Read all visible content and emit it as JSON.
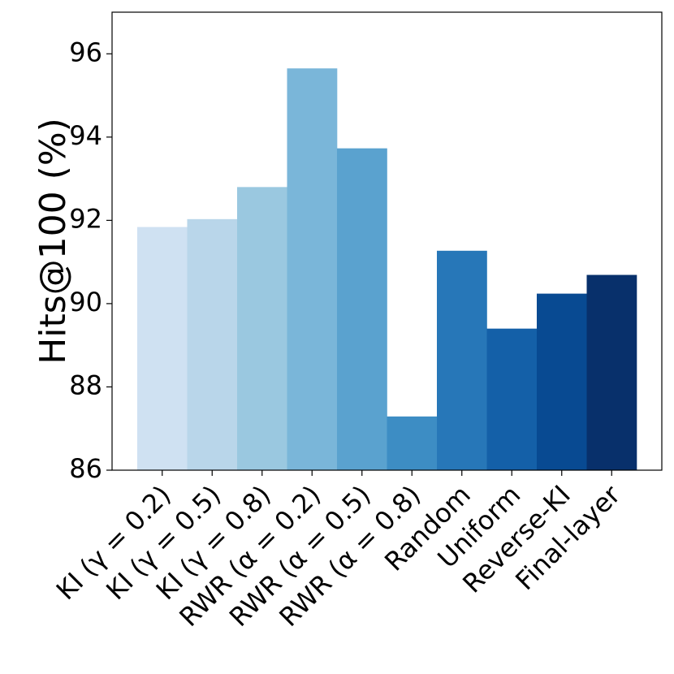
{
  "chart_data": {
    "type": "bar",
    "ylabel": "Hits@100 (%)",
    "categories": [
      "KI (γ = 0.2)",
      "KI (γ = 0.5)",
      "KI (γ = 0.8)",
      "RWR (α = 0.2)",
      "RWR (α = 0.5)",
      "RWR (α = 0.8)",
      "Random",
      "Uniform",
      "Reverse-KI",
      "Final-layer"
    ],
    "values": [
      91.84,
      92.03,
      92.8,
      95.65,
      93.73,
      87.29,
      91.27,
      89.4,
      90.24,
      90.69
    ],
    "colors": [
      "#cfe1f2",
      "#b9d6ea",
      "#9ac8e0",
      "#7ab6d9",
      "#5aa2cf",
      "#3d8dc4",
      "#2777b8",
      "#1460a8",
      "#084a92",
      "#08306b"
    ],
    "ylim": [
      86,
      97
    ],
    "yticks": [
      86,
      88,
      90,
      92,
      94,
      96
    ]
  }
}
